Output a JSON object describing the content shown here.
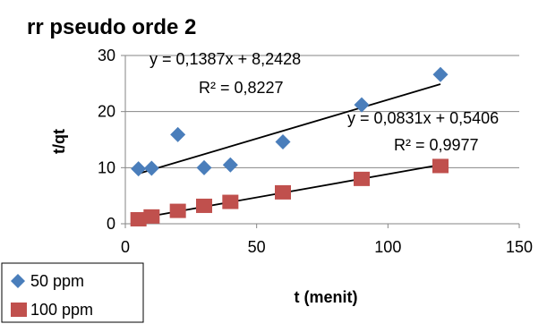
{
  "chart_data": {
    "type": "scatter",
    "title": "rr pseudo orde 2",
    "xlabel": "t (menit)",
    "ylabel": "t/qt",
    "xlim": [
      0,
      150
    ],
    "ylim": [
      0,
      30
    ],
    "x_ticks": [
      "0",
      "50",
      "100",
      "150"
    ],
    "y_ticks": [
      "0",
      "10",
      "20",
      "30"
    ],
    "grid": "horizontal",
    "legend_position": "bottom-left",
    "series": [
      {
        "name": "50 ppm",
        "marker": "diamond",
        "color": "#4a7ebb",
        "x": [
          5,
          10,
          20,
          30,
          40,
          60,
          90,
          120
        ],
        "y": [
          9.8,
          9.9,
          15.9,
          10.0,
          10.5,
          14.6,
          21.2,
          26.6
        ],
        "trendline": {
          "slope": 0.1387,
          "intercept": 8.2428,
          "x_range": [
            5,
            120
          ],
          "equation": "y = 0,1387x + 8,2428",
          "r2": "R² = 0,8227"
        }
      },
      {
        "name": "100 ppm",
        "marker": "square",
        "color": "#c0504d",
        "x": [
          5,
          10,
          20,
          30,
          40,
          60,
          90,
          120
        ],
        "y": [
          0.8,
          1.3,
          2.3,
          3.2,
          3.9,
          5.6,
          8.0,
          10.3
        ],
        "trendline": {
          "slope": 0.0831,
          "intercept": 0.5406,
          "x_range": [
            5,
            120
          ],
          "equation": "y = 0,0831x + 0,5406",
          "r2": "R² = 0,9977"
        }
      }
    ]
  }
}
